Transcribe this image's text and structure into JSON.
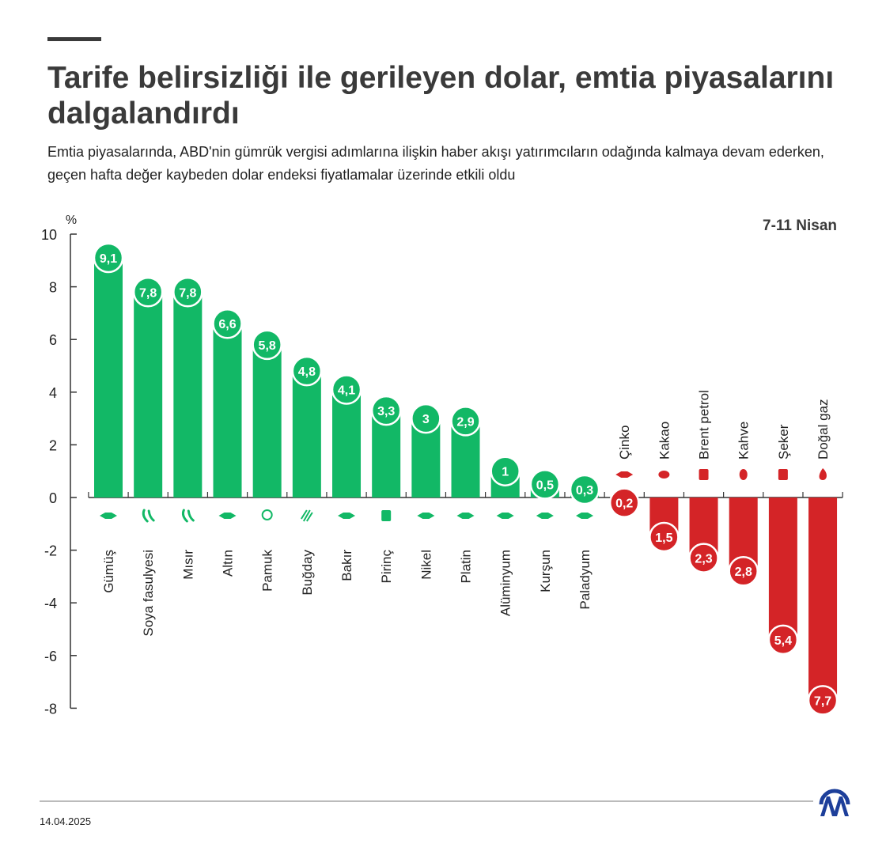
{
  "header": {
    "title": "Tarife belirsizliği ile gerileyen dolar, emtia piyasalarını dalgalandırdı",
    "subtitle": "Emtia piyasalarında, ABD'nin gümrük vergisi adımlarına ilişkin haber akışı yatırımcıların odağında kalmaya devam ederken, geçen hafta değer kaybeden dolar endeksi fiyatlamalar üzerinde etkili oldu"
  },
  "footer": {
    "date": "14.04.2025",
    "logo_text": "AA"
  },
  "chart_data": {
    "type": "bar",
    "period_label": "7-11 Nisan",
    "ylabel": "%",
    "ylim": [
      -8,
      10
    ],
    "yticks": [
      10,
      8,
      6,
      4,
      2,
      0,
      -2,
      -4,
      -6,
      -8
    ],
    "grid": false,
    "colors": {
      "positive": "#12b866",
      "negative": "#d42427",
      "axis": "#333333"
    },
    "categories": [
      "Gümüş",
      "Soya fasulyesi",
      "Mısır",
      "Altın",
      "Pamuk",
      "Buğday",
      "Bakır",
      "Pirinç",
      "Nikel",
      "Platin",
      "Alüminyum",
      "Kurşun",
      "Paladyum",
      "Çinko",
      "Kakao",
      "Brent petrol",
      "Kahve",
      "Şeker",
      "Doğal gaz"
    ],
    "values": [
      9.1,
      7.8,
      7.8,
      6.6,
      5.8,
      4.8,
      4.1,
      3.3,
      3,
      2.9,
      1,
      0.5,
      0.3,
      -0.2,
      -1.5,
      -2.3,
      -2.8,
      -5.4,
      -7.7
    ],
    "value_labels": [
      "9,1",
      "7,8",
      "7,8",
      "6,6",
      "5,8",
      "4,8",
      "4,1",
      "3,3",
      "3",
      "2,9",
      "1",
      "0,5",
      "0,3",
      "0,2",
      "1,5",
      "2,3",
      "2,8",
      "5,4",
      "7,7"
    ],
    "icons": [
      "metal-bars-icon",
      "soybean-icon",
      "soybean-icon",
      "metal-bars-icon",
      "cotton-icon",
      "wheat-icon",
      "metal-bars-icon",
      "rice-sack-icon",
      "metal-bars-icon",
      "metal-bars-icon",
      "metal-bars-icon",
      "metal-bars-icon",
      "metal-bars-icon",
      "metal-bars-icon",
      "cocoa-icon",
      "oil-barrel-icon",
      "coffee-bean-icon",
      "sugar-sack-icon",
      "flame-icon"
    ]
  }
}
